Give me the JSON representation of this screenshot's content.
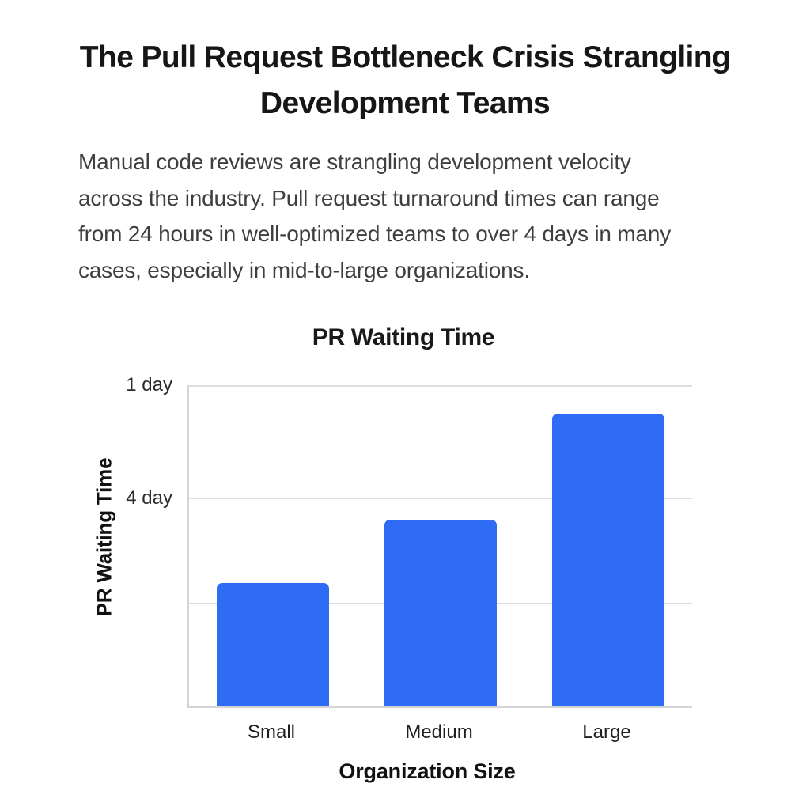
{
  "page": {
    "title": "The Pull Request Bottleneck Crisis Strangling Development Teams",
    "intro_lines": [
      "Manual code reviews are strangling development velocity",
      "across the industry. Pull request turnaround times can range",
      "from 24 hours in well-optimized teams to over 4 days in many",
      "cases, especially in mid-to-large organizations."
    ]
  },
  "chart_data": {
    "type": "bar",
    "title": "PR Waiting Time",
    "xlabel": "Organization Size",
    "ylabel": "PR Waiting Time",
    "categories": [
      "Small",
      "Medium",
      "Large"
    ],
    "values_fraction_of_axis": [
      0.385,
      0.582,
      0.911
    ],
    "y_tick_labels": [
      "1 day",
      "4 day",
      ""
    ],
    "gridlines_fraction_from_top": [
      0,
      0.352,
      0.677
    ],
    "bar_color": "#2F6CF5",
    "grid": true,
    "legend": false
  }
}
